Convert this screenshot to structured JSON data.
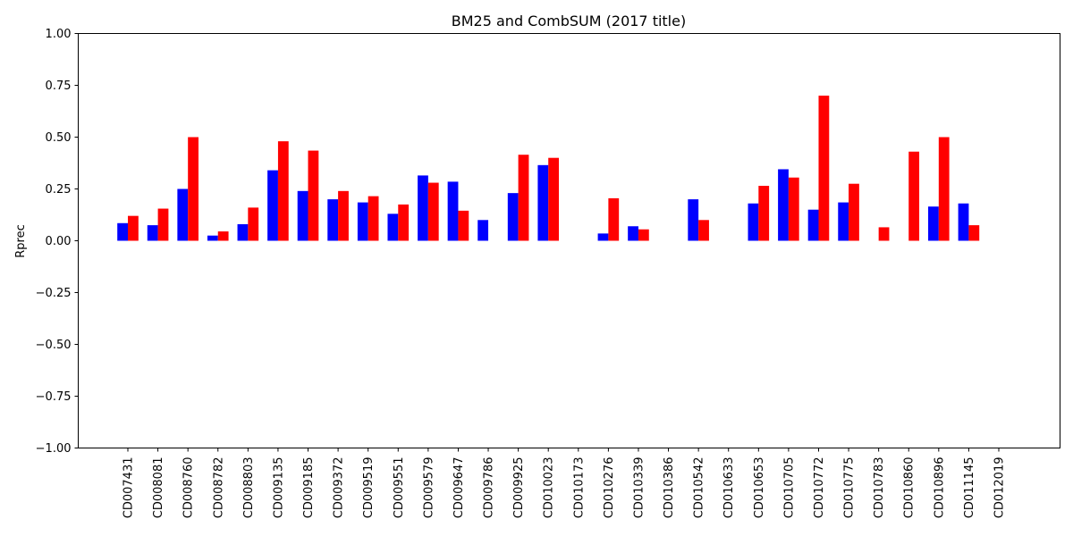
{
  "chart_data": {
    "type": "bar",
    "title": "BM25 and CombSUM (2017 title)",
    "xlabel": "",
    "ylabel": "Rprec",
    "ylim": [
      -1.0,
      1.0
    ],
    "yticks": [
      "-1.00",
      "-0.75",
      "-0.50",
      "-0.25",
      "0.00",
      "0.25",
      "0.50",
      "0.75",
      "1.00"
    ],
    "ytick_values": [
      -1.0,
      -0.75,
      -0.5,
      -0.25,
      0.0,
      0.25,
      0.5,
      0.75,
      1.0
    ],
    "grid": false,
    "legend": "none",
    "categories": [
      "CD007431",
      "CD008081",
      "CD008760",
      "CD008782",
      "CD008803",
      "CD009135",
      "CD009185",
      "CD009372",
      "CD009519",
      "CD009551",
      "CD009579",
      "CD009647",
      "CD009786",
      "CD009925",
      "CD010023",
      "CD010173",
      "CD010276",
      "CD010339",
      "CD010386",
      "CD010542",
      "CD010633",
      "CD010653",
      "CD010705",
      "CD010772",
      "CD010775",
      "CD010783",
      "CD010860",
      "CD010896",
      "CD011145",
      "CD012019"
    ],
    "series": [
      {
        "color": "#0000ff",
        "values": [
          0.085,
          0.075,
          0.25,
          0.025,
          0.08,
          0.34,
          0.24,
          0.2,
          0.185,
          0.13,
          0.315,
          0.285,
          0.1,
          0.23,
          0.365,
          0.0,
          0.035,
          0.07,
          0.0,
          0.2,
          0.0,
          0.18,
          0.345,
          0.15,
          0.185,
          0.0,
          0.0,
          0.165,
          0.18,
          0.0
        ]
      },
      {
        "color": "#ff0000",
        "values": [
          0.12,
          0.155,
          0.5,
          0.045,
          0.16,
          0.48,
          0.435,
          0.24,
          0.215,
          0.175,
          0.28,
          0.145,
          0.0,
          0.415,
          0.4,
          0.0,
          0.205,
          0.055,
          0.0,
          0.1,
          0.0,
          0.265,
          0.305,
          0.7,
          0.275,
          0.065,
          0.43,
          0.5,
          0.075,
          0.0
        ]
      }
    ]
  }
}
